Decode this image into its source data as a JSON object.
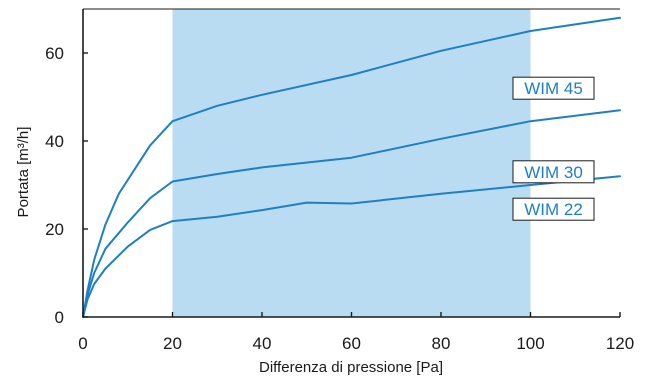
{
  "chart_data": {
    "type": "line",
    "title": "",
    "xlabel": "Differenza di pressione [Pa]",
    "ylabel": "Portata  [m³/h]",
    "xlim": [
      0,
      120
    ],
    "ylim": [
      0,
      70
    ],
    "xticks": [
      "0",
      "20",
      "40",
      "60",
      "80",
      "100",
      "120"
    ],
    "yticks": [
      "0",
      "20",
      "40",
      "60"
    ],
    "grid": false,
    "highlight_band": {
      "x_from": 20,
      "x_to": 100,
      "color": "#b9dcf3"
    },
    "line_color": "#1f7fc4",
    "series": [
      {
        "name": "WIM 45",
        "x": [
          0,
          1,
          2.5,
          5,
          8,
          15,
          20,
          30,
          40,
          60,
          80,
          100,
          120
        ],
        "y": [
          0,
          6,
          13,
          21,
          28,
          39,
          44.5,
          48,
          50.5,
          55,
          60.5,
          65,
          68
        ]
      },
      {
        "name": "WIM 30",
        "x": [
          0,
          1,
          2.5,
          5,
          10,
          15,
          20,
          30,
          40,
          60,
          80,
          100,
          120
        ],
        "y": [
          0,
          5,
          10,
          15.5,
          21.5,
          27,
          30.8,
          32.5,
          34,
          36.2,
          40.5,
          44.5,
          47
        ]
      },
      {
        "name": "WIM 22",
        "x": [
          0,
          1,
          2.5,
          5,
          10,
          15,
          20,
          30,
          40,
          50,
          60,
          80,
          100,
          120
        ],
        "y": [
          0,
          4,
          7.5,
          11,
          16,
          19.8,
          21.8,
          22.8,
          24.3,
          26,
          25.8,
          28,
          30,
          32
        ]
      }
    ]
  }
}
